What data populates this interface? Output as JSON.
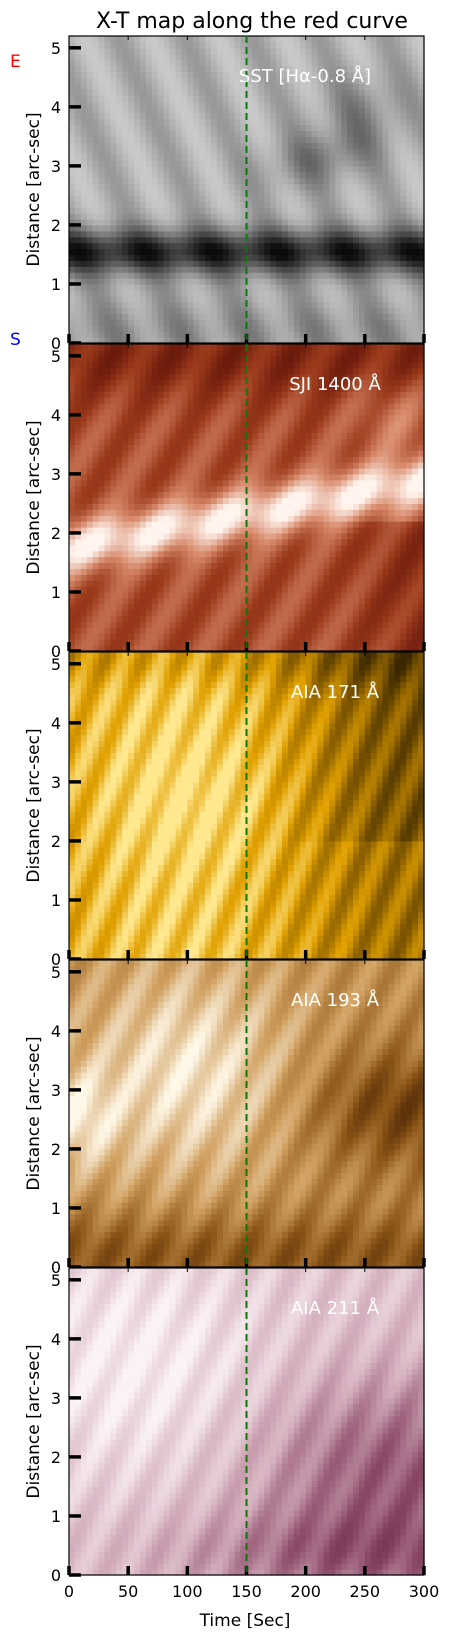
{
  "figure": {
    "title": "X-T map along the red curve",
    "corner_labels": [
      {
        "text": "E",
        "color": "#ff0000"
      },
      {
        "text": "S",
        "color": "#0000ff"
      }
    ],
    "xlabel": "Time  [Sec]",
    "marker_color": "#008000"
  },
  "chart_data": [
    {
      "type": "heatmap",
      "panel_label": "SST [Hα-0.8 Å]",
      "ylabel": "Distance  [arc-sec]",
      "xlim": [
        0,
        300
      ],
      "ylim": [
        0,
        5.2
      ],
      "x_ticks": [
        0,
        50,
        100,
        150,
        200,
        250,
        300
      ],
      "y_ticks": [
        0,
        1,
        2,
        3,
        4,
        5
      ],
      "vertical_marker_x": 150,
      "colormap": [
        "#0a0a0a",
        "#5a5a5a",
        "#a8a8a8",
        "#e8e8e8"
      ],
      "xtick_labels": false
    },
    {
      "type": "heatmap",
      "panel_label": "SJI 1400 Å",
      "ylabel": "Distance  [arc-sec]",
      "xlim": [
        0,
        300
      ],
      "ylim": [
        0,
        5.2
      ],
      "x_ticks": [
        0,
        50,
        100,
        150,
        200,
        250,
        300
      ],
      "y_ticks": [
        0,
        1,
        2,
        3,
        4,
        5
      ],
      "vertical_marker_x": 150,
      "colormap": [
        "#5a1006",
        "#9b3a1c",
        "#d88a6c",
        "#fff4ee"
      ],
      "xtick_labels": false
    },
    {
      "type": "heatmap",
      "panel_label": "AIA 171 Å",
      "ylabel": "Distance  [arc-sec]",
      "xlim": [
        0,
        300
      ],
      "ylim": [
        0,
        5.2
      ],
      "x_ticks": [
        0,
        50,
        100,
        150,
        200,
        250,
        300
      ],
      "y_ticks": [
        0,
        1,
        2,
        3,
        4,
        5
      ],
      "vertical_marker_x": 150,
      "colormap": [
        "#3a2800",
        "#8c6000",
        "#e0a000",
        "#ffe890"
      ],
      "xtick_labels": false
    },
    {
      "type": "heatmap",
      "panel_label": "AIA 193 Å",
      "ylabel": "Distance  [arc-sec]",
      "xlim": [
        0,
        300
      ],
      "ylim": [
        0,
        5.2
      ],
      "x_ticks": [
        0,
        50,
        100,
        150,
        200,
        250,
        300
      ],
      "y_ticks": [
        0,
        1,
        2,
        3,
        4,
        5
      ],
      "vertical_marker_x": 150,
      "colormap": [
        "#3a1a02",
        "#8a5416",
        "#d0a060",
        "#fff8e8"
      ],
      "xtick_labels": false
    },
    {
      "type": "heatmap",
      "panel_label": "AIA 211 Å",
      "ylabel": "Distance  [arc-sec]",
      "xlim": [
        0,
        300
      ],
      "ylim": [
        0,
        5.2
      ],
      "x_ticks": [
        0,
        50,
        100,
        150,
        200,
        250,
        300
      ],
      "y_ticks": [
        0,
        1,
        2,
        3,
        4,
        5
      ],
      "vertical_marker_x": 150,
      "colormap": [
        "#4a1030",
        "#8a4868",
        "#d0a8b8",
        "#fbf2f5"
      ],
      "xtick_labels": true
    }
  ]
}
